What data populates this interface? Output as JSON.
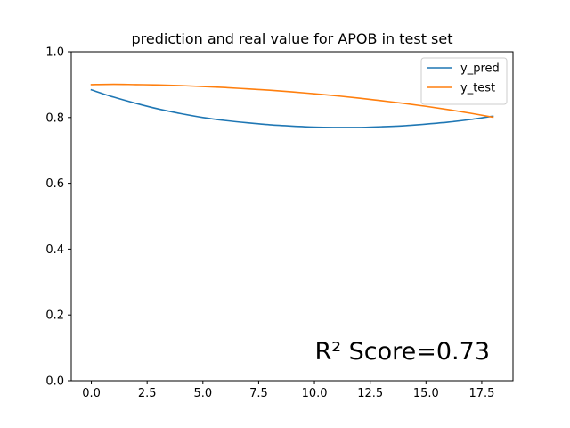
{
  "chart_data": {
    "type": "line",
    "title": "prediction and real value for APOB in test set",
    "xlabel": "",
    "ylabel": "",
    "xlim": [
      -0.9,
      18.9
    ],
    "ylim": [
      0.0,
      1.0
    ],
    "xticks": [
      0.0,
      2.5,
      5.0,
      7.5,
      10.0,
      12.5,
      15.0,
      17.5
    ],
    "xtick_labels": [
      "0.0",
      "2.5",
      "5.0",
      "7.5",
      "10.0",
      "12.5",
      "15.0",
      "17.5"
    ],
    "yticks": [
      0.0,
      0.2,
      0.4,
      0.6,
      0.8,
      1.0
    ],
    "ytick_labels": [
      "0.0",
      "0.2",
      "0.4",
      "0.6",
      "0.8",
      "1.0"
    ],
    "grid": false,
    "legend_position": "top-right",
    "x": [
      0,
      1,
      2,
      3,
      4,
      5,
      6,
      7,
      8,
      9,
      10,
      11,
      12,
      13,
      14,
      15,
      16,
      17,
      18
    ],
    "series": [
      {
        "name": "y_pred",
        "color": "#1f77b4",
        "values": [
          0.884,
          0.862,
          0.843,
          0.826,
          0.812,
          0.8,
          0.791,
          0.784,
          0.778,
          0.774,
          0.771,
          0.77,
          0.77,
          0.772,
          0.775,
          0.78,
          0.786,
          0.794,
          0.804
        ]
      },
      {
        "name": "y_test",
        "color": "#ff7f0e",
        "values": [
          0.9,
          0.901,
          0.9,
          0.899,
          0.897,
          0.894,
          0.891,
          0.887,
          0.883,
          0.878,
          0.872,
          0.866,
          0.859,
          0.851,
          0.843,
          0.834,
          0.824,
          0.813,
          0.801
        ]
      }
    ],
    "annotation": "R² Score=0.73"
  }
}
